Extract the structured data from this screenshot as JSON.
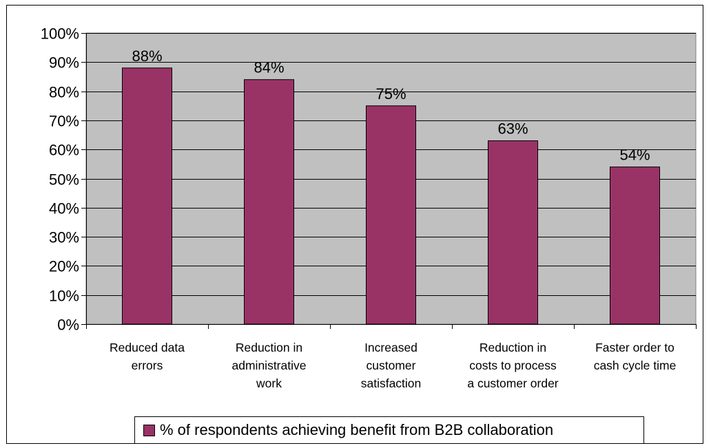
{
  "chart_data": {
    "type": "bar",
    "categories": [
      [
        "Reduced data",
        "errors"
      ],
      [
        "Reduction in",
        "administrative",
        "work"
      ],
      [
        "Increased",
        "customer",
        "satisfaction"
      ],
      [
        "Reduction in",
        "costs to process",
        "a customer order"
      ],
      [
        "Faster order to",
        "cash cycle time"
      ]
    ],
    "series": [
      {
        "name": "% of respondents achieving benefit from B2B collaboration",
        "values": [
          88,
          84,
          75,
          63,
          54
        ],
        "data_labels": [
          "88%",
          "84%",
          "75%",
          "63%",
          "54%"
        ],
        "color": "#993366"
      }
    ],
    "ylim": [
      0,
      100
    ],
    "y_ticks": [
      0,
      10,
      20,
      30,
      40,
      50,
      60,
      70,
      80,
      90,
      100
    ],
    "y_tick_labels": [
      "0%",
      "10%",
      "20%",
      "30%",
      "40%",
      "50%",
      "60%",
      "70%",
      "80%",
      "90%",
      "100%"
    ],
    "grid": true,
    "legend_position": "bottom",
    "colors": {
      "plot_background": "#c0c0c0",
      "gridline": "#000000",
      "bar": "#993366",
      "bar_border": "#000000"
    }
  }
}
